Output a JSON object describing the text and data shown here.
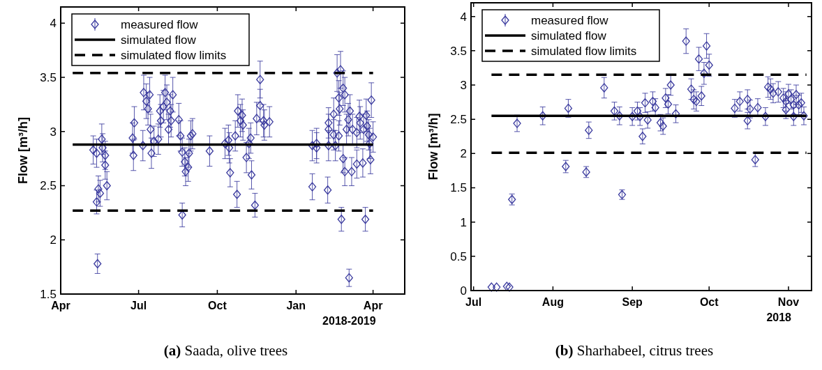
{
  "chart_data": [
    {
      "type": "scatter",
      "title": "(a) Saada, olive trees",
      "ylabel": "Flow [m³/h]",
      "annotations": [
        "2018-2019"
      ],
      "legend": "top left",
      "xlim": [
        "2018-04-01",
        "2019-05-08"
      ],
      "ylim": [
        1.5,
        4.15
      ],
      "xticks": [
        {
          "value": "2018-04-01",
          "label": "Apr"
        },
        {
          "value": "2018-07-01",
          "label": "Jul"
        },
        {
          "value": "2018-10-01",
          "label": "Oct"
        },
        {
          "value": "2019-01-01",
          "label": "Jan"
        },
        {
          "value": "2019-04-01",
          "label": "Apr"
        }
      ],
      "yticks": [
        1.5,
        2,
        2.5,
        3,
        3.5,
        4
      ],
      "series": [
        {
          "name": "measured flow",
          "type": "scatter",
          "marker": "diamond",
          "color": "#3a3a9e",
          "x": [
            "2018-05-09",
            "2018-05-13",
            "2018-05-13",
            "2018-05-15",
            "2018-05-14",
            "2018-05-17",
            "2018-05-19",
            "2018-05-20",
            "2018-05-23",
            "2018-05-23",
            "2018-05-25",
            "2018-06-24",
            "2018-06-25",
            "2018-06-26",
            "2018-07-06",
            "2018-07-07",
            "2018-07-10",
            "2018-07-12",
            "2018-07-14",
            "2018-07-15",
            "2018-07-16",
            "2018-07-19",
            "2018-07-24",
            "2018-07-26",
            "2018-07-27",
            "2018-07-30",
            "2018-08-01",
            "2018-08-03",
            "2018-08-05",
            "2018-08-07",
            "2018-08-08",
            "2018-08-10",
            "2018-08-17",
            "2018-08-19",
            "2018-08-21",
            "2018-08-21",
            "2018-08-24",
            "2018-08-25",
            "2018-08-28",
            "2018-08-29",
            "2018-08-31",
            "2018-09-02",
            "2018-09-22",
            "2018-10-10",
            "2018-10-14",
            "2018-10-15",
            "2018-10-16",
            "2018-10-22",
            "2018-10-24",
            "2018-10-25",
            "2018-10-28",
            "2018-10-30",
            "2018-10-31",
            "2018-11-04",
            "2018-11-07",
            "2018-11-09",
            "2018-11-10",
            "2018-11-14",
            "2018-11-16",
            "2018-11-20",
            "2018-11-20",
            "2018-11-25",
            "2018-11-24",
            "2018-12-01",
            "2019-01-20",
            "2019-01-20",
            "2019-01-25",
            "2019-01-25",
            "2019-02-07",
            "2019-02-08",
            "2019-02-08",
            "2019-02-08",
            "2019-02-14",
            "2019-02-14",
            "2019-02-16",
            "2019-02-18",
            "2019-02-20",
            "2019-02-20",
            "2019-02-21",
            "2019-02-22",
            "2019-02-23",
            "2019-02-25",
            "2019-02-27",
            "2019-02-25",
            "2019-02-27",
            "2019-03-01",
            "2019-03-03",
            "2019-03-04",
            "2019-03-05",
            "2019-03-07",
            "2019-03-08",
            "2019-03-13",
            "2019-03-13",
            "2019-03-16",
            "2019-03-17",
            "2019-03-20",
            "2019-03-21",
            "2019-03-23",
            "2019-03-24",
            "2019-03-25",
            "2019-03-27",
            "2019-03-28",
            "2019-03-29",
            "2019-03-30",
            "2019-04-01"
          ],
          "values": [
            2.83,
            2.8,
            2.35,
            2.47,
            1.78,
            2.43,
            2.93,
            2.85,
            2.78,
            2.69,
            2.5,
            2.94,
            2.78,
            3.08,
            2.87,
            3.36,
            3.28,
            3.21,
            3.34,
            3.02,
            2.8,
            2.91,
            2.93,
            3.19,
            3.1,
            3.23,
            3.36,
            3.27,
            3.02,
            3.19,
            3.1,
            3.34,
            3.11,
            2.96,
            2.81,
            2.23,
            2.72,
            2.63,
            2.67,
            2.8,
            2.96,
            2.98,
            2.82,
            2.89,
            2.92,
            2.85,
            2.62,
            2.96,
            2.42,
            3.19,
            3.1,
            3.15,
            3.06,
            2.76,
            2.89,
            2.94,
            2.6,
            2.32,
            3.12,
            3.48,
            3.24,
            3.06,
            3.1,
            3.09,
            2.87,
            2.49,
            2.89,
            2.85,
            2.46,
            3.08,
            3.02,
            2.87,
            3.16,
            2.97,
            2.87,
            3.54,
            3.31,
            2.96,
            3.21,
            3.57,
            2.19,
            3.4,
            3.34,
            2.75,
            2.63,
            3.02,
            3.11,
            1.65,
            3.19,
            2.63,
            3.02,
            2.99,
            2.7,
            3.14,
            3.08,
            2.71,
            3.02,
            2.19,
            3.15,
            3.05,
            2.97,
            2.89,
            2.74,
            3.29,
            2.95
          ],
          "errors": [
            0.13,
            0.13,
            0.11,
            0.12,
            0.09,
            0.12,
            0.14,
            0.13,
            0.13,
            0.13,
            0.13,
            0.14,
            0.14,
            0.15,
            0.14,
            0.16,
            0.16,
            0.15,
            0.16,
            0.14,
            0.14,
            0.14,
            0.14,
            0.15,
            0.15,
            0.15,
            0.16,
            0.16,
            0.14,
            0.15,
            0.15,
            0.16,
            0.15,
            0.14,
            0.13,
            0.11,
            0.13,
            0.13,
            0.13,
            0.13,
            0.14,
            0.14,
            0.14,
            0.14,
            0.14,
            0.14,
            0.13,
            0.14,
            0.12,
            0.15,
            0.15,
            0.15,
            0.14,
            0.14,
            0.14,
            0.14,
            0.13,
            0.11,
            0.15,
            0.17,
            0.15,
            0.14,
            0.15,
            0.14,
            0.14,
            0.12,
            0.14,
            0.14,
            0.12,
            0.14,
            0.14,
            0.14,
            0.15,
            0.14,
            0.14,
            0.17,
            0.16,
            0.14,
            0.15,
            0.17,
            0.11,
            0.16,
            0.16,
            0.13,
            0.13,
            0.14,
            0.15,
            0.08,
            0.15,
            0.13,
            0.14,
            0.14,
            0.13,
            0.15,
            0.15,
            0.13,
            0.14,
            0.11,
            0.15,
            0.14,
            0.14,
            0.14,
            0.13,
            0.16,
            0.14
          ]
        },
        {
          "name": "simulated flow",
          "type": "line",
          "line_style": "solid",
          "color": "#000000",
          "x": [
            "2018-04-15",
            "2019-04-01"
          ],
          "values": [
            2.88,
            2.88
          ]
        },
        {
          "name": "simulated flow limits",
          "type": "line",
          "line_style": "dashed",
          "color": "#000000",
          "x": [
            "2018-04-15",
            "2019-04-01"
          ],
          "values": [
            3.54,
            3.54
          ]
        },
        {
          "type": "line",
          "line_style": "dashed",
          "color": "#000000",
          "x": [
            "2018-04-15",
            "2019-04-01"
          ],
          "values": [
            2.27,
            2.27
          ]
        }
      ]
    },
    {
      "type": "scatter",
      "title": "(b) Sharhabeel, citrus trees",
      "ylabel": "Flow [m³/h]",
      "annotations": [
        "2018"
      ],
      "legend": "top left",
      "xlim": [
        "2018-06-30",
        "2018-11-10"
      ],
      "ylim": [
        0,
        4.2
      ],
      "xticks": [
        {
          "value": "2018-07-01",
          "label": "Jul"
        },
        {
          "value": "2018-08-01",
          "label": "Aug"
        },
        {
          "value": "2018-09-01",
          "label": "Sep"
        },
        {
          "value": "2018-10-01",
          "label": "Oct"
        },
        {
          "value": "2018-11-01",
          "label": "Nov"
        }
      ],
      "yticks": [
        0,
        0.5,
        1,
        1.5,
        2,
        2.5,
        3,
        3.5,
        4
      ],
      "series": [
        {
          "name": "measured flow",
          "type": "scatter",
          "marker": "diamond",
          "color": "#3a3a9e",
          "x": [
            "2018-07-08",
            "2018-07-10",
            "2018-07-14",
            "2018-07-15",
            "2018-07-16",
            "2018-07-18",
            "2018-07-28",
            "2018-08-06",
            "2018-08-07",
            "2018-08-14",
            "2018-08-15",
            "2018-08-21",
            "2018-08-25",
            "2018-08-27",
            "2018-08-28",
            "2018-09-01",
            "2018-09-03",
            "2018-09-04",
            "2018-09-05",
            "2018-09-06",
            "2018-09-07",
            "2018-09-09",
            "2018-09-10",
            "2018-09-12",
            "2018-09-13",
            "2018-09-14",
            "2018-09-15",
            "2018-09-16",
            "2018-09-18",
            "2018-09-22",
            "2018-09-24",
            "2018-09-25",
            "2018-09-26",
            "2018-09-27",
            "2018-09-28",
            "2018-09-29",
            "2018-09-30",
            "2018-10-01",
            "2018-10-11",
            "2018-10-13",
            "2018-10-16",
            "2018-10-16",
            "2018-10-17",
            "2018-10-19",
            "2018-10-20",
            "2018-10-23",
            "2018-10-24",
            "2018-10-25",
            "2018-10-26",
            "2018-10-28",
            "2018-10-30",
            "2018-10-31",
            "2018-10-31",
            "2018-11-01",
            "2018-11-02",
            "2018-11-03",
            "2018-11-03",
            "2018-11-04",
            "2018-11-05",
            "2018-11-06",
            "2018-11-07"
          ],
          "values": [
            0.05,
            0.05,
            0.06,
            0.05,
            1.33,
            2.44,
            2.55,
            1.81,
            2.66,
            1.73,
            2.34,
            2.96,
            2.62,
            2.55,
            1.4,
            2.54,
            2.62,
            2.54,
            2.25,
            2.74,
            2.49,
            2.76,
            2.67,
            2.45,
            2.4,
            2.81,
            2.72,
            3.0,
            2.58,
            3.64,
            2.94,
            2.79,
            2.76,
            3.38,
            2.84,
            3.17,
            3.57,
            3.29,
            2.66,
            2.76,
            2.48,
            2.79,
            2.65,
            1.91,
            2.67,
            2.54,
            2.97,
            2.94,
            2.88,
            2.9,
            2.81,
            2.76,
            2.64,
            2.87,
            2.79,
            2.71,
            2.54,
            2.86,
            2.71,
            2.74,
            2.55
          ],
          "errors": [
            null,
            null,
            null,
            null,
            0.08,
            0.12,
            0.13,
            0.09,
            0.13,
            0.08,
            0.12,
            0.15,
            0.13,
            0.13,
            0.07,
            0.13,
            0.13,
            0.13,
            0.11,
            0.14,
            0.12,
            0.14,
            0.13,
            0.12,
            0.12,
            0.14,
            0.14,
            0.15,
            0.13,
            0.18,
            0.15,
            0.14,
            0.14,
            0.17,
            0.14,
            0.16,
            0.18,
            0.16,
            0.13,
            0.14,
            0.12,
            0.14,
            0.13,
            0.1,
            0.13,
            0.13,
            0.15,
            0.15,
            0.14,
            0.15,
            0.14,
            0.14,
            0.13,
            0.14,
            0.14,
            0.14,
            0.13,
            0.14,
            0.14,
            0.14,
            0.13
          ]
        },
        {
          "name": "simulated flow",
          "type": "line",
          "line_style": "solid",
          "color": "#000000",
          "x": [
            "2018-07-08",
            "2018-11-08"
          ],
          "values": [
            2.55,
            2.55
          ]
        },
        {
          "name": "simulated flow limits",
          "type": "line",
          "line_style": "dashed",
          "color": "#000000",
          "x": [
            "2018-07-08",
            "2018-11-08"
          ],
          "values": [
            3.15,
            3.15
          ]
        },
        {
          "type": "line",
          "line_style": "dashed",
          "color": "#000000",
          "x": [
            "2018-07-08",
            "2018-11-08"
          ],
          "values": [
            2.01,
            2.01
          ]
        }
      ]
    }
  ]
}
